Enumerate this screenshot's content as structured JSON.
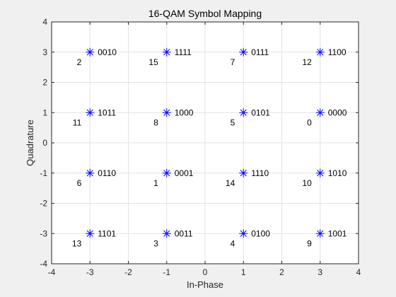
{
  "chart_data": {
    "type": "scatter",
    "title": "16-QAM Symbol Mapping",
    "xlabel": "In-Phase",
    "ylabel": "Quadrature",
    "xlim": [
      -4,
      4
    ],
    "ylim": [
      -4,
      4
    ],
    "xticks": [
      "-4",
      "-3",
      "-2",
      "-1",
      "0",
      "1",
      "2",
      "3",
      "4"
    ],
    "yticks": [
      "-4",
      "-3",
      "-2",
      "-1",
      "0",
      "1",
      "2",
      "3",
      "4"
    ],
    "grid": true,
    "marker": "asterisk",
    "marker_color": "#0000ff",
    "points": [
      {
        "x": -3,
        "y": 3,
        "index": "2",
        "bits": "0010"
      },
      {
        "x": -1,
        "y": 3,
        "index": "15",
        "bits": "1111"
      },
      {
        "x": 1,
        "y": 3,
        "index": "7",
        "bits": "0111"
      },
      {
        "x": 3,
        "y": 3,
        "index": "12",
        "bits": "1100"
      },
      {
        "x": -3,
        "y": 1,
        "index": "11",
        "bits": "1011"
      },
      {
        "x": -1,
        "y": 1,
        "index": "8",
        "bits": "1000"
      },
      {
        "x": 1,
        "y": 1,
        "index": "5",
        "bits": "0101"
      },
      {
        "x": 3,
        "y": 1,
        "index": "0",
        "bits": "0000"
      },
      {
        "x": -3,
        "y": -1,
        "index": "6",
        "bits": "0110"
      },
      {
        "x": -1,
        "y": -1,
        "index": "1",
        "bits": "0001"
      },
      {
        "x": 1,
        "y": -1,
        "index": "14",
        "bits": "1110"
      },
      {
        "x": 3,
        "y": -1,
        "index": "10",
        "bits": "1010"
      },
      {
        "x": -3,
        "y": -3,
        "index": "13",
        "bits": "1101"
      },
      {
        "x": -1,
        "y": -3,
        "index": "3",
        "bits": "0011"
      },
      {
        "x": 1,
        "y": -3,
        "index": "4",
        "bits": "0100"
      },
      {
        "x": 3,
        "y": -3,
        "index": "9",
        "bits": "1001"
      }
    ]
  }
}
